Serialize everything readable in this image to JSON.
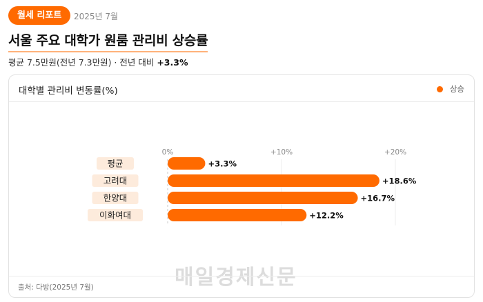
{
  "header": {
    "badge": "월세 리포트",
    "date": "2025년 7월",
    "headline": "서울 주요 대학가 원룸 관리비 상승률",
    "subline_prefix": "평균 7.5만원(전년 7.3만원) · 전년 대비 ",
    "subline_change": "+3.3%"
  },
  "card": {
    "title": "대학별 관리비 변동률(%)",
    "legend": "상승",
    "watermark": "매일경제신문",
    "source": "출처: 다방(2025년 7월)"
  },
  "colors": {
    "accent": "#ff6a00",
    "label_bg": "#fdebdc"
  },
  "chart_data": {
    "type": "bar",
    "orientation": "horizontal",
    "title": "대학별 관리비 변동률(%)",
    "categories": [
      "평균",
      "고려대",
      "한양대",
      "이화여대"
    ],
    "values": [
      3.3,
      18.6,
      16.7,
      12.2
    ],
    "value_labels": [
      "+3.3%",
      "+18.6%",
      "+16.7%",
      "+12.2%"
    ],
    "x_ticks": [
      0,
      10,
      20
    ],
    "x_tick_labels": [
      "0%",
      "+10%",
      "+20%"
    ],
    "xlim": [
      0,
      20
    ],
    "series": [
      {
        "name": "상승",
        "values": [
          3.3,
          18.6,
          16.7,
          12.2
        ]
      }
    ],
    "grid": true,
    "legend_position": "top-right"
  }
}
